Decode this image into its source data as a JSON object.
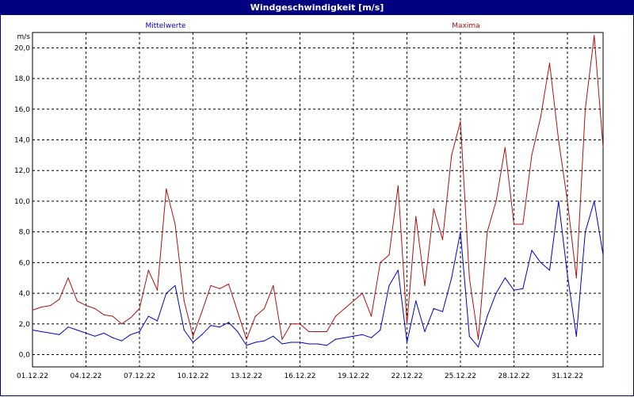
{
  "window": {
    "title": "Windgeschwindigkeit [m/s]"
  },
  "colors": {
    "background": "#ffffff",
    "titlebar": "#000080",
    "grid": "#000000",
    "mean_series": "#0000cc",
    "max_series": "#b01010"
  },
  "chart_data": {
    "type": "line",
    "title": "Windgeschwindigkeit [m/s]",
    "ylabel": "m/s",
    "xlabel": "",
    "ylim": [
      -0.8,
      21.0
    ],
    "xlim": [
      0,
      32
    ],
    "grid": true,
    "legend_placement": "top",
    "yticks": [
      "0,0",
      "2,0",
      "4,0",
      "6,0",
      "8,0",
      "10,0",
      "12,0",
      "14,0",
      "16,0",
      "18,0",
      "20,0"
    ],
    "xticks": [
      {
        "label": "01.12.22",
        "x": 0
      },
      {
        "label": "04.12.22",
        "x": 3
      },
      {
        "label": "07.12.22",
        "x": 6
      },
      {
        "label": "10.12.22",
        "x": 9
      },
      {
        "label": "13.12.22",
        "x": 12
      },
      {
        "label": "16.12.22",
        "x": 15
      },
      {
        "label": "19.12.22",
        "x": 18
      },
      {
        "label": "22.12.22",
        "x": 21
      },
      {
        "label": "25.12.22",
        "x": 24
      },
      {
        "label": "28.12.22",
        "x": 27
      },
      {
        "label": "31.12.22",
        "x": 30
      }
    ],
    "series": [
      {
        "name": "Mittelwerte",
        "color": "#0000cc",
        "x": [
          0,
          0.5,
          1,
          1.5,
          2,
          2.5,
          3,
          3.5,
          4,
          4.5,
          5,
          5.5,
          6,
          6.5,
          7,
          7.5,
          8,
          8.5,
          9,
          9.5,
          10,
          10.5,
          11,
          11.5,
          12,
          12.5,
          13,
          13.5,
          14,
          14.5,
          15,
          15.5,
          16,
          16.5,
          17,
          17.5,
          18,
          18.5,
          19,
          19.5,
          20,
          20.5,
          21,
          21.5,
          22,
          22.5,
          23,
          23.5,
          24,
          24.5,
          25,
          25.5,
          26,
          26.5,
          27,
          27.5,
          28,
          28.5,
          29,
          29.5,
          30,
          30.5,
          31,
          31.5,
          32
        ],
        "values": [
          1.6,
          1.5,
          1.4,
          1.3,
          1.8,
          1.6,
          1.4,
          1.2,
          1.4,
          1.1,
          0.9,
          1.3,
          1.5,
          2.5,
          2.2,
          4.0,
          4.5,
          1.6,
          0.8,
          1.3,
          1.9,
          1.8,
          2.1,
          1.5,
          0.6,
          0.8,
          0.9,
          1.2,
          0.7,
          0.8,
          0.8,
          0.7,
          0.7,
          0.6,
          1.0,
          1.1,
          1.2,
          1.3,
          1.1,
          1.6,
          4.5,
          5.5,
          0.8,
          3.5,
          1.5,
          3.0,
          2.8,
          5.0,
          8.0,
          1.2,
          0.5,
          2.5,
          4.0,
          5.0,
          4.2,
          4.3,
          6.8,
          6.0,
          5.5,
          10.0,
          5.2,
          1.2,
          8.0,
          10.0,
          6.5
        ]
      },
      {
        "name": "Maxima",
        "color": "#b01010",
        "x": [
          0,
          0.5,
          1,
          1.5,
          2,
          2.5,
          3,
          3.5,
          4,
          4.5,
          5,
          5.5,
          6,
          6.5,
          7,
          7.5,
          8,
          8.5,
          9,
          9.5,
          10,
          10.5,
          11,
          11.5,
          12,
          12.5,
          13,
          13.5,
          14,
          14.5,
          15,
          15.5,
          16,
          16.5,
          17,
          17.5,
          18,
          18.5,
          19,
          19.5,
          20,
          20.5,
          21,
          21.5,
          22,
          22.5,
          23,
          23.5,
          24,
          24.5,
          25,
          25.5,
          26,
          26.5,
          27,
          27.5,
          28,
          28.5,
          29,
          29.5,
          30,
          30.5,
          31,
          31.5,
          32
        ],
        "values": [
          2.9,
          3.1,
          3.2,
          3.6,
          5.0,
          3.5,
          3.2,
          3.0,
          2.6,
          2.5,
          2.0,
          2.4,
          3.0,
          5.5,
          4.2,
          10.8,
          8.5,
          3.5,
          1.2,
          2.8,
          4.5,
          4.3,
          4.6,
          2.8,
          1.0,
          2.5,
          3.0,
          4.5,
          1.0,
          2.0,
          2.0,
          1.5,
          1.5,
          1.5,
          2.5,
          3.0,
          3.5,
          4.0,
          2.5,
          6.0,
          6.5,
          11.0,
          2.0,
          9.0,
          4.5,
          9.5,
          7.5,
          13.0,
          15.2,
          5.0,
          1.0,
          8.0,
          10.0,
          13.5,
          8.5,
          8.5,
          13.0,
          15.5,
          19.0,
          14.0,
          10.0,
          5.0,
          16.0,
          20.8,
          13.5
        ]
      }
    ]
  }
}
